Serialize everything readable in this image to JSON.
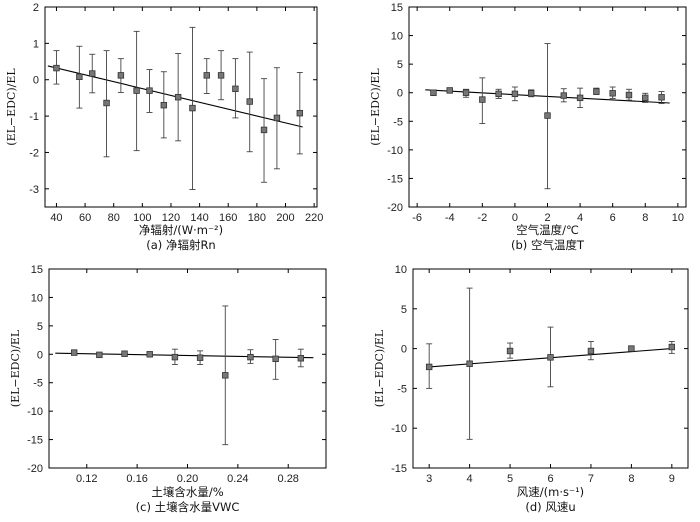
{
  "chart_data": [
    {
      "type": "scatter",
      "caption": "(a) 净辐射Rn",
      "xlabel": "净辐射/(W·m⁻²)",
      "ylabel": "(EL−EDC)/EL",
      "xlim": [
        32,
        222
      ],
      "ylim": [
        -3.5,
        2
      ],
      "xticks": [
        40,
        60,
        80,
        100,
        120,
        140,
        160,
        180,
        200,
        220
      ],
      "yticks": [
        2,
        1,
        0,
        -1,
        -2,
        -3
      ],
      "points": [
        {
          "x": 40,
          "y": 0.32,
          "lo": -0.12,
          "hi": 0.8
        },
        {
          "x": 56,
          "y": 0.08,
          "lo": -0.78,
          "hi": 0.92
        },
        {
          "x": 65,
          "y": 0.17,
          "lo": -0.36,
          "hi": 0.7
        },
        {
          "x": 75,
          "y": -0.64,
          "lo": -2.12,
          "hi": 0.8
        },
        {
          "x": 85,
          "y": 0.12,
          "lo": -0.35,
          "hi": 0.58
        },
        {
          "x": 96,
          "y": -0.3,
          "lo": -1.95,
          "hi": 1.33
        },
        {
          "x": 105,
          "y": -0.3,
          "lo": -0.9,
          "hi": 0.28
        },
        {
          "x": 115,
          "y": -0.7,
          "lo": -1.6,
          "hi": 0.22
        },
        {
          "x": 125,
          "y": -0.48,
          "lo": -1.68,
          "hi": 0.72
        },
        {
          "x": 135,
          "y": -0.78,
          "lo": -3.02,
          "hi": 1.44
        },
        {
          "x": 145,
          "y": 0.12,
          "lo": -0.38,
          "hi": 0.58
        },
        {
          "x": 155,
          "y": 0.12,
          "lo": -0.55,
          "hi": 0.8
        },
        {
          "x": 165,
          "y": -0.25,
          "lo": -1.05,
          "hi": 0.58
        },
        {
          "x": 175,
          "y": -0.6,
          "lo": -1.98,
          "hi": 0.76
        },
        {
          "x": 185,
          "y": -1.38,
          "lo": -2.82,
          "hi": 0.03
        },
        {
          "x": 194,
          "y": -1.05,
          "lo": -2.45,
          "hi": 0.33
        },
        {
          "x": 210,
          "y": -0.92,
          "lo": -2.04,
          "hi": 0.2
        }
      ],
      "fit": [
        [
          34,
          0.38
        ],
        [
          212,
          -1.3
        ]
      ]
    },
    {
      "type": "scatter",
      "caption": "(b) 空气温度T",
      "xlabel": "空气温度/℃",
      "ylabel": "(EL−EDC)/EL",
      "xlim": [
        -6.5,
        10.5
      ],
      "ylim": [
        -20,
        15
      ],
      "xticks": [
        -6,
        -4,
        -2,
        0,
        2,
        4,
        6,
        8,
        10
      ],
      "yticks": [
        15,
        10,
        5,
        0,
        -5,
        -10,
        -15,
        -20
      ],
      "points": [
        {
          "x": -5,
          "y": 0.0,
          "lo": -0.5,
          "hi": 0.4
        },
        {
          "x": -4,
          "y": 0.4,
          "lo": 0.2,
          "hi": 0.6
        },
        {
          "x": -3,
          "y": 0.0,
          "lo": -0.8,
          "hi": 0.6
        },
        {
          "x": -2,
          "y": -1.2,
          "lo": -5.4,
          "hi": 2.6
        },
        {
          "x": -1,
          "y": -0.2,
          "lo": -1.0,
          "hi": 0.6
        },
        {
          "x": 0,
          "y": -0.2,
          "lo": -1.4,
          "hi": 1.0
        },
        {
          "x": 1,
          "y": -0.1,
          "lo": -0.7,
          "hi": 0.5
        },
        {
          "x": 2,
          "y": -4.0,
          "lo": -16.8,
          "hi": 8.6
        },
        {
          "x": 3,
          "y": -0.5,
          "lo": -1.6,
          "hi": 0.7
        },
        {
          "x": 4,
          "y": -0.9,
          "lo": -2.6,
          "hi": 0.8
        },
        {
          "x": 5,
          "y": 0.2,
          "lo": -0.3,
          "hi": 0.8
        },
        {
          "x": 6,
          "y": -0.1,
          "lo": -1.0,
          "hi": 1.0
        },
        {
          "x": 7,
          "y": -0.4,
          "lo": -1.3,
          "hi": 0.6
        },
        {
          "x": 8,
          "y": -0.9,
          "lo": -1.7,
          "hi": -0.1
        },
        {
          "x": 9,
          "y": -0.8,
          "lo": -1.9,
          "hi": 0.2
        }
      ],
      "fit": [
        [
          -5.5,
          0.5
        ],
        [
          9.5,
          -1.8
        ]
      ]
    },
    {
      "type": "scatter",
      "caption": "(c) 土壤含水量VWC",
      "xlabel": "土壤含水量/%",
      "ylabel": "(EL−EDC)/EL",
      "xlim": [
        0.09,
        0.31
      ],
      "ylim": [
        -20,
        15
      ],
      "xticks": [
        0.12,
        0.16,
        0.2,
        0.24,
        0.28
      ],
      "yticks": [
        15,
        10,
        5,
        0,
        -5,
        -10,
        -15,
        -20
      ],
      "points": [
        {
          "x": 0.11,
          "y": 0.3,
          "lo": 0.1,
          "hi": 0.5
        },
        {
          "x": 0.13,
          "y": -0.1,
          "lo": -0.3,
          "hi": 0.2
        },
        {
          "x": 0.15,
          "y": 0.1,
          "lo": -0.1,
          "hi": 0.3
        },
        {
          "x": 0.17,
          "y": 0.0,
          "lo": -0.2,
          "hi": 0.2
        },
        {
          "x": 0.19,
          "y": -0.5,
          "lo": -1.8,
          "hi": 0.9
        },
        {
          "x": 0.21,
          "y": -0.6,
          "lo": -1.8,
          "hi": 0.6
        },
        {
          "x": 0.23,
          "y": -3.7,
          "lo": -15.9,
          "hi": 8.5
        },
        {
          "x": 0.25,
          "y": -0.5,
          "lo": -1.6,
          "hi": 0.8
        },
        {
          "x": 0.27,
          "y": -0.8,
          "lo": -4.4,
          "hi": 2.6
        },
        {
          "x": 0.29,
          "y": -0.7,
          "lo": -2.2,
          "hi": 0.9
        }
      ],
      "fit": [
        [
          0.095,
          0.2
        ],
        [
          0.3,
          -0.6
        ]
      ]
    },
    {
      "type": "scatter",
      "caption": "(d) 风速u",
      "xlabel": "风速/(m·s⁻¹)",
      "ylabel": "(EL−EDC)/EL",
      "xlim": [
        2.6,
        9.4
      ],
      "ylim": [
        -15,
        10
      ],
      "xticks": [
        3,
        4,
        5,
        6,
        7,
        8,
        9
      ],
      "yticks": [
        10,
        5,
        0,
        -5,
        -10,
        -15
      ],
      "points": [
        {
          "x": 3,
          "y": -2.3,
          "lo": -5.0,
          "hi": 0.6
        },
        {
          "x": 4,
          "y": -1.9,
          "lo": -11.4,
          "hi": 7.6
        },
        {
          "x": 5,
          "y": -0.3,
          "lo": -1.2,
          "hi": 0.7
        },
        {
          "x": 6,
          "y": -1.1,
          "lo": -4.8,
          "hi": 2.7
        },
        {
          "x": 7,
          "y": -0.3,
          "lo": -1.4,
          "hi": 0.9
        },
        {
          "x": 8,
          "y": 0.0,
          "lo": -0.3,
          "hi": 0.3
        },
        {
          "x": 9,
          "y": 0.2,
          "lo": -0.6,
          "hi": 0.9
        }
      ],
      "fit": [
        [
          3,
          -2.3
        ],
        [
          9,
          0.0
        ]
      ]
    }
  ]
}
